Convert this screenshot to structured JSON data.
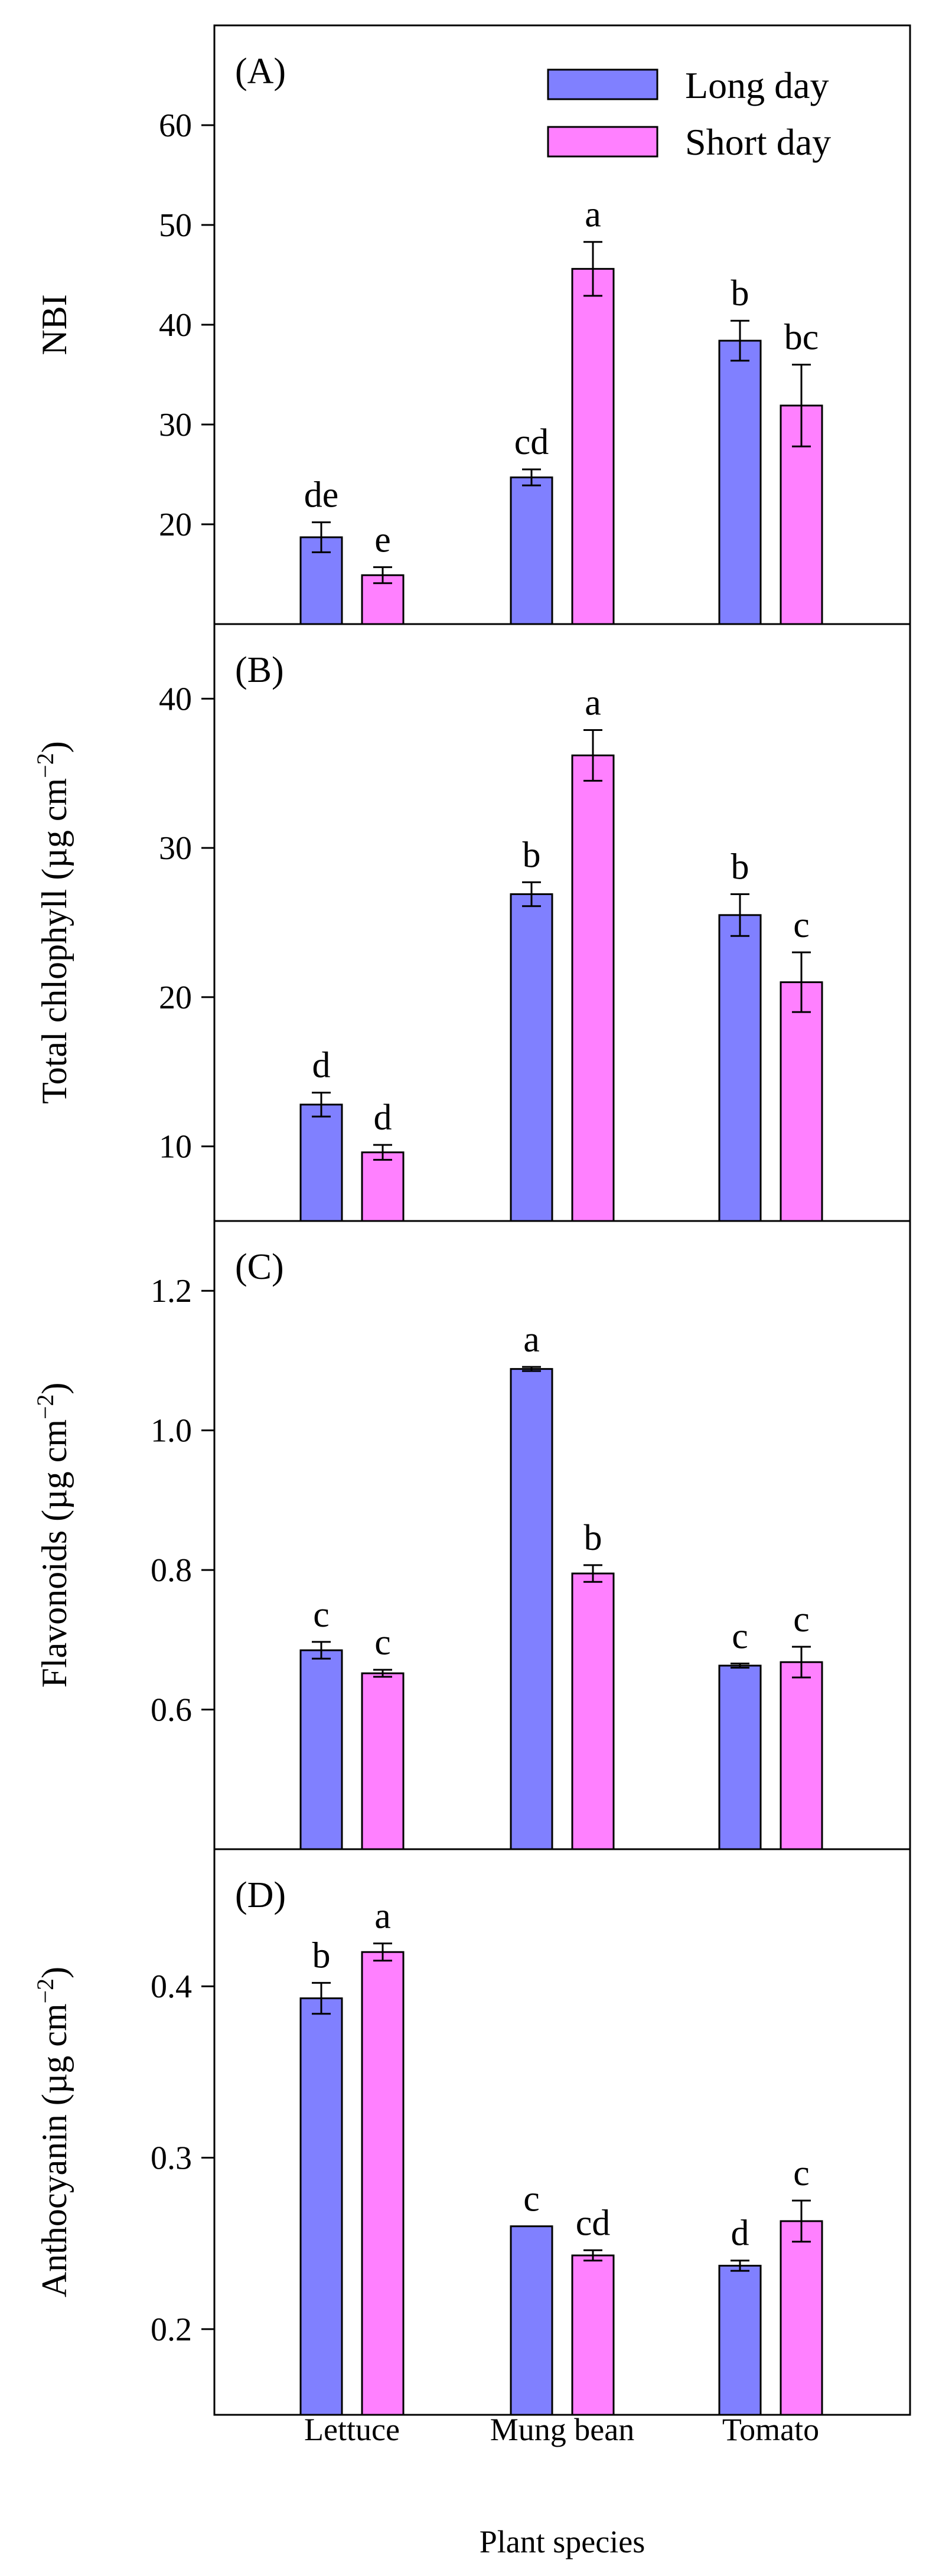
{
  "chart_data": [
    {
      "panel": "(A)",
      "type": "bar",
      "categories": [
        "Lettuce",
        "Mung bean",
        "Tomato"
      ],
      "series": [
        {
          "name": "Long day",
          "values": [
            18.7,
            24.7,
            38.4
          ],
          "errors": [
            1.5,
            0.8,
            2.0
          ]
        },
        {
          "name": "Short day",
          "values": [
            14.9,
            45.6,
            31.9
          ],
          "errors": [
            0.8,
            2.7,
            4.1
          ]
        }
      ],
      "letters": [
        [
          "de",
          "cd",
          "b"
        ],
        [
          "e",
          "a",
          "bc"
        ]
      ],
      "ylabel": "NBI",
      "ylabel_sup": "",
      "ylabel_close": "",
      "ylim": [
        10,
        70
      ],
      "yticks": [
        20,
        30,
        40,
        50,
        60
      ],
      "tick_decimals": 0
    },
    {
      "panel": "(B)",
      "type": "bar",
      "categories": [
        "Lettuce",
        "Mung bean",
        "Tomato"
      ],
      "series": [
        {
          "name": "Long day",
          "values": [
            12.8,
            26.9,
            25.5
          ],
          "errors": [
            0.8,
            0.8,
            1.4
          ]
        },
        {
          "name": "Short day",
          "values": [
            9.6,
            36.2,
            21.0
          ],
          "errors": [
            0.5,
            1.7,
            2.0
          ]
        }
      ],
      "letters": [
        [
          "d",
          "b",
          "b"
        ],
        [
          "d",
          "a",
          "c"
        ]
      ],
      "ylabel": "Total chlophyll (µg cm",
      "ylabel_sup": "−2",
      "ylabel_close": ")",
      "ylim": [
        5,
        45
      ],
      "yticks": [
        10,
        20,
        30,
        40
      ],
      "tick_decimals": 0
    },
    {
      "panel": "(C)",
      "type": "bar",
      "categories": [
        "Lettuce",
        "Mung bean",
        "Tomato"
      ],
      "series": [
        {
          "name": "Long day",
          "values": [
            0.685,
            1.088,
            0.663
          ],
          "errors": [
            0.012,
            0.003,
            0.003
          ]
        },
        {
          "name": "Short day",
          "values": [
            0.652,
            0.795,
            0.668
          ],
          "errors": [
            0.005,
            0.012,
            0.022
          ]
        }
      ],
      "letters": [
        [
          "c",
          "a",
          "c"
        ],
        [
          "c",
          "b",
          "c"
        ]
      ],
      "ylabel": "Flavonoids (µg cm",
      "ylabel_sup": "−2",
      "ylabel_close": ")",
      "ylim": [
        0.4,
        1.3
      ],
      "yticks": [
        0.6,
        0.8,
        1.0,
        1.2
      ],
      "tick_decimals": 1
    },
    {
      "panel": "(D)",
      "type": "bar",
      "categories": [
        "Lettuce",
        "Mung bean",
        "Tomato"
      ],
      "series": [
        {
          "name": "Long day",
          "values": [
            0.393,
            0.26,
            0.237
          ],
          "errors": [
            0.009,
            0.0,
            0.003
          ]
        },
        {
          "name": "Short day",
          "values": [
            0.42,
            0.243,
            0.263
          ],
          "errors": [
            0.005,
            0.003,
            0.012
          ]
        }
      ],
      "letters": [
        [
          "b",
          "c",
          "d"
        ],
        [
          "a",
          "cd",
          "c"
        ]
      ],
      "ylabel": "Anthocyanin (µg cm",
      "ylabel_sup": "−2",
      "ylabel_close": ")",
      "ylim": [
        0.15,
        0.48
      ],
      "yticks": [
        0.2,
        0.3,
        0.4
      ],
      "tick_decimals": 1
    }
  ],
  "legend": {
    "items": [
      {
        "label": "Long day",
        "color": "#8080FF"
      },
      {
        "label": "Short day",
        "color": "#FF80FF"
      }
    ],
    "position": "top-right"
  },
  "xlabel": "Plant species",
  "colors": {
    "long_day": "#8080FF",
    "short_day": "#FF80FF",
    "axis": "#000000"
  }
}
